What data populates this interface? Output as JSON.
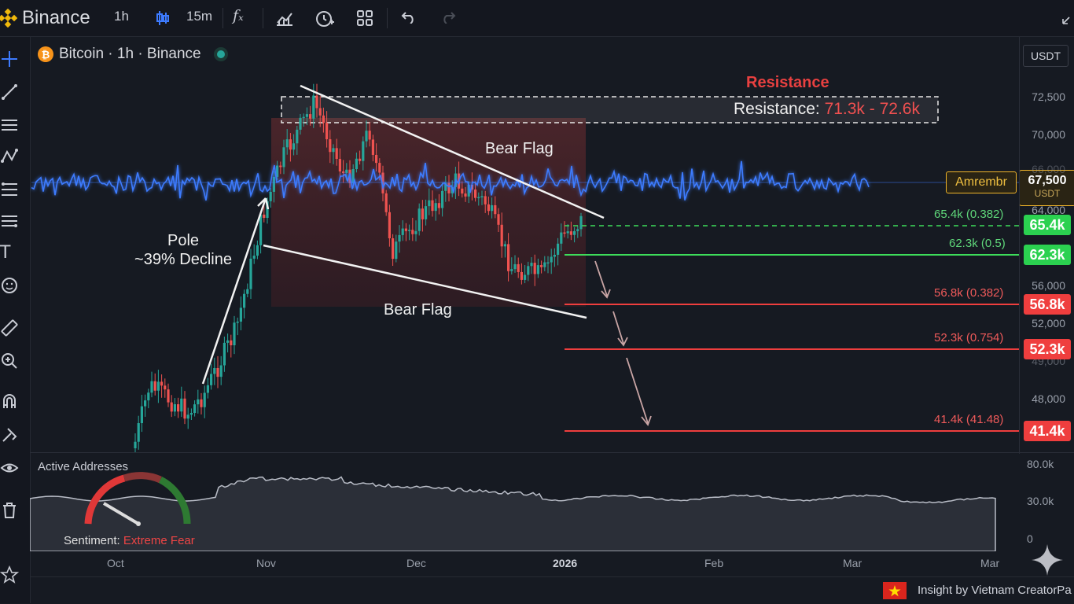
{
  "app": {
    "name": "Binance"
  },
  "toolbar": {
    "interval1": "1h",
    "interval2": "15m",
    "fx_icon": "fx-icon"
  },
  "symbol": {
    "title": "Bitcoin · 1h · Binance",
    "currency": "USDT"
  },
  "colors": {
    "bg": "#161a22",
    "bull": "#26a69a",
    "bear": "#ef5350",
    "accent": "#f0b429",
    "wave": "#3d7bff",
    "support": "#3ddc5a"
  },
  "annotations": {
    "resistance_title": "Resistance",
    "resistance_label": "Resistance:",
    "resistance_range": "71.3k - 72.6k",
    "bear_flag_top": "Bear Flag",
    "bear_flag_bottom": "Bear Flag",
    "pole_line1": "Pole",
    "pole_line2": "~39% Decline",
    "indicator_tag": "Amrembr",
    "price_badge": "67,500",
    "price_badge_unit": "USDT"
  },
  "levels": [
    {
      "label": "65.4k (0.382)",
      "badge": "65.4k",
      "type": "support"
    },
    {
      "label": "62.3k (0.5)",
      "badge": "62.3k",
      "type": "support"
    },
    {
      "label": "56.8k (0.382)",
      "badge": "56.8k",
      "type": "target"
    },
    {
      "label": "52.3k (0.754)",
      "badge": "52.3k",
      "type": "target"
    },
    {
      "label": "41.4k (41.48)",
      "badge": "41.4k",
      "type": "target"
    }
  ],
  "y_axis": {
    "ticks": [
      "72,500",
      "70,000",
      "66,000",
      "64,000",
      "56,000",
      "52,000",
      "49,000",
      "48,000"
    ]
  },
  "x_axis": {
    "ticks": [
      "Oct",
      "Nov",
      "Dec",
      "2026",
      "Feb",
      "Mar",
      "Mar"
    ]
  },
  "sub_panel": {
    "title": "Active Addresses",
    "ticks": [
      "80.0k",
      "30.0k",
      "0"
    ],
    "sentiment_label": "Sentiment:",
    "sentiment_value": "Extreme Fear"
  },
  "footer": {
    "credit": "Insight by Vietnam CreatorPa"
  },
  "chart_data": {
    "type": "candlestick",
    "title": "Bitcoin · 1h · Binance",
    "ylim": [
      40000,
      74000
    ],
    "x": [
      "Oct",
      "Nov",
      "Dec",
      "2026",
      "Feb",
      "Mar"
    ],
    "resistance_zone": [
      71300,
      72600
    ],
    "fib_levels": [
      65400,
      62300,
      56800,
      52300,
      41400
    ],
    "current_price": 67500,
    "sub_series": {
      "name": "Active Addresses",
      "ylim": [
        0,
        80000
      ]
    }
  }
}
